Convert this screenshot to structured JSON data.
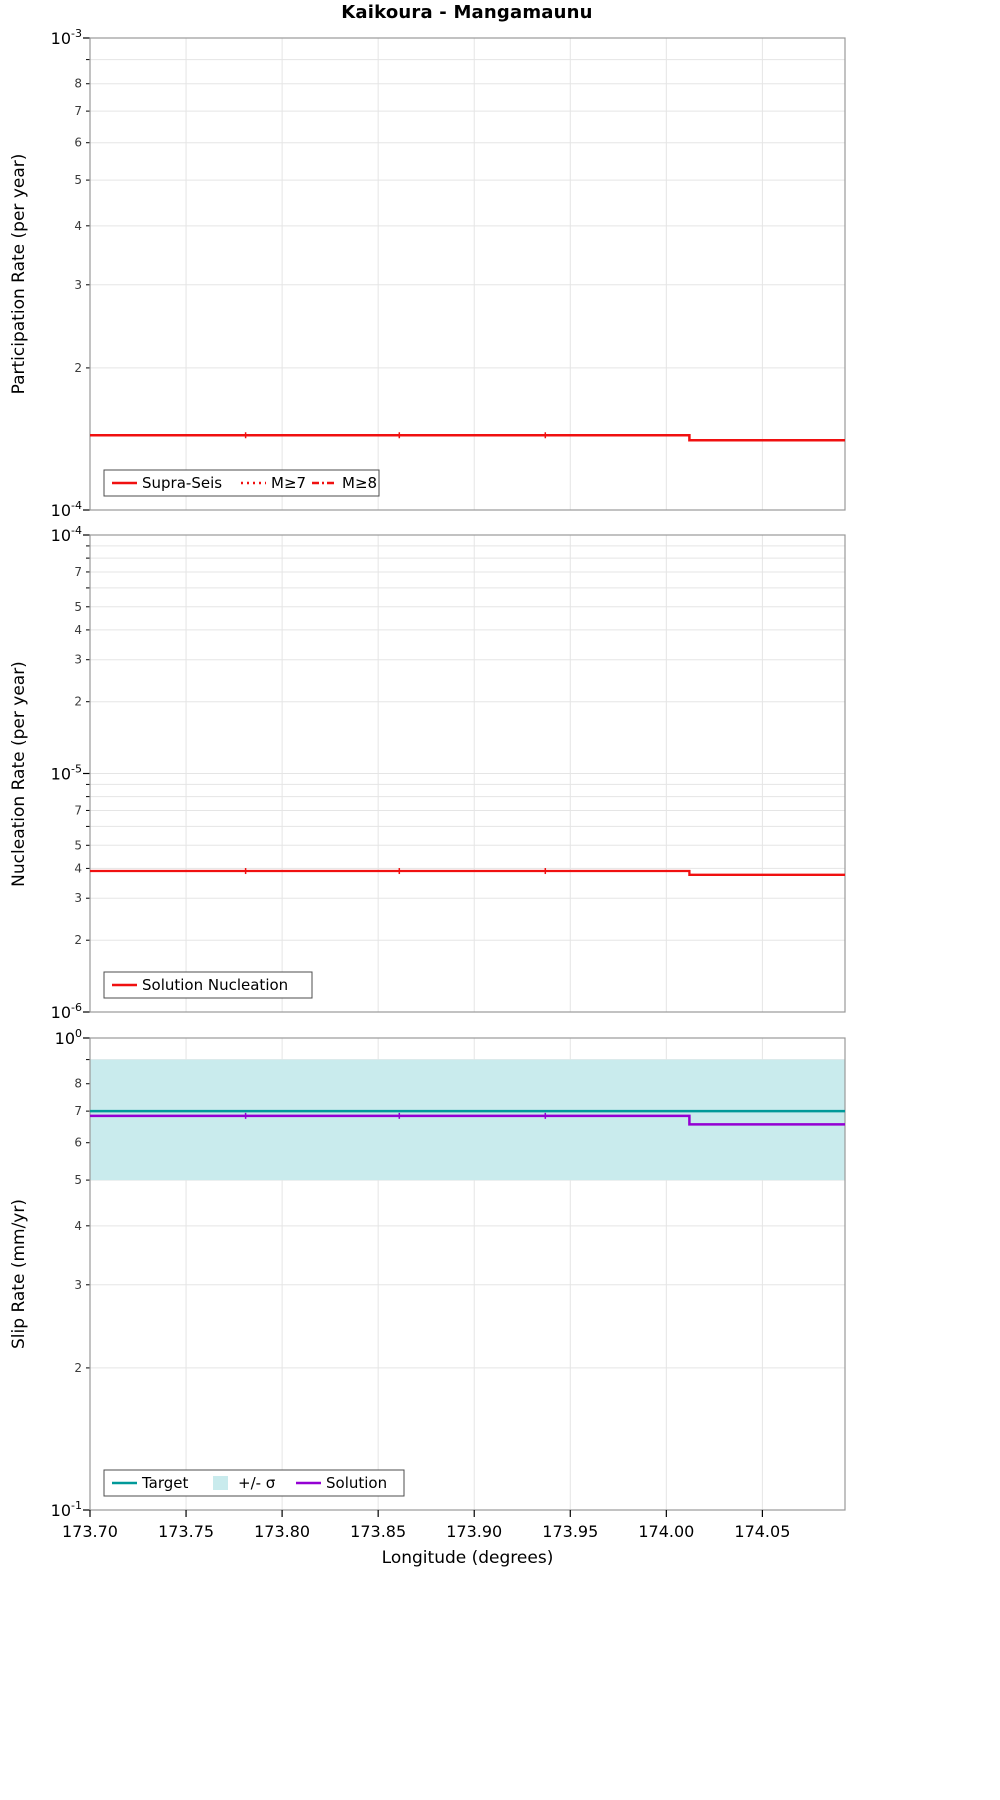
{
  "chart_data": {
    "type": "line",
    "title": "Kaikoura - Mangamaunu",
    "xlabel": "Longitude (degrees)",
    "x_axis": {
      "min": 173.7,
      "max": 174.093,
      "ticks": [
        173.7,
        173.75,
        173.8,
        173.85,
        173.9,
        173.95,
        174.0,
        174.05
      ],
      "tick_labels": [
        "173.70",
        "173.75",
        "173.80",
        "173.85",
        "173.90",
        "173.95",
        "174.00",
        "174.05"
      ]
    },
    "colors": {
      "red": "#f01010",
      "teal": "#009999",
      "band": "#c9ebed",
      "purple": "#9400d3",
      "grid": "#e5e5e5",
      "frame": "#999999",
      "text": "#000000"
    },
    "panels": [
      {
        "name": "participation",
        "ylabel": "Participation Rate (per year)",
        "yscale": "log",
        "log_min_exp": -4,
        "log_max_exp": -3,
        "minor_labels": [
          8,
          7,
          6,
          5,
          4,
          3,
          2
        ],
        "legend": [
          {
            "label": "Supra-Seis",
            "style": "solid",
            "color": "red"
          },
          {
            "label": "M≥7",
            "style": "dotted",
            "color": "red"
          },
          {
            "label": "M≥8",
            "style": "dashdot",
            "color": "red"
          }
        ],
        "series": [
          {
            "name": "Supra-Seis",
            "style": "solid",
            "color": "red",
            "width": 2.5,
            "points": [
              [
                173.7,
                0.000144
              ],
              [
                174.012,
                0.000144
              ],
              [
                174.012,
                0.0001405
              ],
              [
                174.093,
                0.0001405
              ]
            ],
            "tick_marks_x": [
              173.781,
              173.861,
              173.937
            ]
          },
          {
            "name": "M≥7",
            "style": "dotted",
            "color": "red",
            "width": 2.0,
            "points": [
              [
                173.7,
                0.000144
              ],
              [
                174.012,
                0.000144
              ]
            ]
          },
          {
            "name": "M≥8",
            "style": "dashdot",
            "color": "red",
            "width": 2.0,
            "points": []
          }
        ]
      },
      {
        "name": "nucleation",
        "ylabel": "Nucleation Rate (per year)",
        "yscale": "log",
        "log_min_exp": -6,
        "log_max_exp": -4,
        "minor_labels": [
          7,
          5,
          4,
          3,
          2
        ],
        "legend": [
          {
            "label": "Solution Nucleation",
            "style": "solid",
            "color": "red"
          }
        ],
        "series": [
          {
            "name": "Solution Nucleation",
            "style": "solid",
            "color": "red",
            "width": 2.3,
            "points": [
              [
                173.7,
                3.9e-06
              ],
              [
                174.012,
                3.9e-06
              ],
              [
                174.012,
                3.76e-06
              ],
              [
                174.093,
                3.76e-06
              ]
            ],
            "tick_marks_x": [
              173.781,
              173.861,
              173.937
            ]
          }
        ]
      },
      {
        "name": "slip-rate",
        "ylabel": "Slip Rate (mm/yr)",
        "yscale": "log",
        "log_min_exp": -1,
        "log_max_exp": 0,
        "minor_labels": [
          8,
          7,
          6,
          5,
          4,
          3,
          2
        ],
        "band": {
          "label": "+/- σ",
          "color": "band",
          "x": [
            173.7,
            174.093
          ],
          "y_low": 0.5,
          "y_high": 0.9
        },
        "legend": [
          {
            "label": "Target",
            "style": "solid",
            "color": "teal"
          },
          {
            "label": "+/- σ",
            "style": "band",
            "color": "band"
          },
          {
            "label": "Solution",
            "style": "solid",
            "color": "purple"
          }
        ],
        "series": [
          {
            "name": "Target",
            "style": "solid",
            "color": "teal",
            "width": 2.5,
            "points": [
              [
                173.7,
                0.7
              ],
              [
                174.093,
                0.7
              ]
            ]
          },
          {
            "name": "Solution",
            "style": "solid",
            "color": "purple",
            "width": 2.5,
            "points": [
              [
                173.7,
                0.684
              ],
              [
                174.012,
                0.684
              ],
              [
                174.012,
                0.656
              ],
              [
                174.093,
                0.656
              ]
            ],
            "tick_marks_x": [
              173.781,
              173.861,
              173.937
            ]
          }
        ]
      }
    ]
  }
}
